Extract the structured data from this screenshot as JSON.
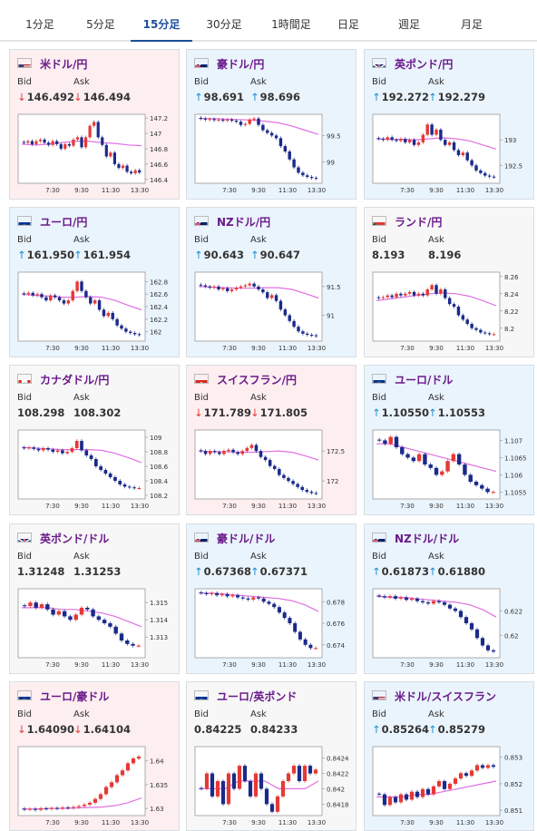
{
  "tabs": [
    "1分足",
    "5分足",
    "15分足",
    "30分足",
    "1時間足",
    "日足",
    "週足",
    "月足"
  ],
  "active_tab": 2,
  "labels": {
    "bid": "Bid",
    "ask": "Ask"
  },
  "colors": {
    "down_bg": "#fdeef0",
    "up_bg": "#eaf4fc",
    "accent": "#1d4f9c",
    "name": "#6a1a8a",
    "up_arrow": "#1a8fd6",
    "down_arrow": "#e53935",
    "bull_candle": "#e53935",
    "bear_candle": "#1a2a8a",
    "ma_line": "#e070e0"
  },
  "x_ticks": [
    "7:30",
    "9:30",
    "11:30",
    "13:30"
  ],
  "pairs": [
    {
      "name": "米ドル/円",
      "flag": "us-jp-flag-icon",
      "trend": "down",
      "bid": "146.492",
      "ask": "146.494",
      "ticks": [
        "147.2",
        "147",
        "146.8",
        "146.6",
        "146.4"
      ],
      "chart_data": {
        "type": "candlestick",
        "ylim": [
          146.35,
          147.25
        ],
        "closes": [
          146.88,
          146.9,
          146.86,
          146.9,
          146.92,
          146.88,
          146.85,
          146.9,
          146.86,
          146.8,
          146.86,
          146.84,
          146.92,
          146.95,
          146.82,
          146.95,
          147.1,
          147.15,
          146.95,
          146.85,
          146.7,
          146.75,
          146.6,
          146.55,
          146.58,
          146.5,
          146.48,
          146.52,
          146.49
        ],
        "ma": [
          146.86,
          146.85,
          146.86,
          146.88,
          146.9,
          146.9,
          146.88,
          146.87,
          146.85,
          146.84
        ]
      }
    },
    {
      "name": "豪ドル/円",
      "flag": "au-jp-flag-icon",
      "trend": "up",
      "bid": "98.691",
      "ask": "98.696",
      "ticks": [
        "99.5",
        "99"
      ],
      "chart_data": {
        "type": "candlestick",
        "ylim": [
          98.6,
          99.9
        ],
        "closes": [
          99.82,
          99.8,
          99.81,
          99.79,
          99.8,
          99.78,
          99.8,
          99.78,
          99.76,
          99.7,
          99.72,
          99.8,
          99.82,
          99.7,
          99.6,
          99.55,
          99.5,
          99.45,
          99.3,
          99.2,
          99.05,
          98.9,
          98.8,
          98.75,
          98.72,
          98.7,
          98.69
        ],
        "ma": [
          99.82,
          99.82,
          99.81,
          99.8,
          99.79,
          99.77,
          99.74,
          99.68,
          99.6,
          99.52
        ]
      }
    },
    {
      "name": "英ポンド/円",
      "flag": "gb-jp-flag-icon",
      "trend": "up",
      "bid": "192.272",
      "ask": "192.279",
      "ticks": [
        "193",
        "192.5"
      ],
      "chart_data": {
        "type": "candlestick",
        "ylim": [
          192.15,
          193.5
        ],
        "closes": [
          193.02,
          193.0,
          193.05,
          193.0,
          192.98,
          193.02,
          192.95,
          193.0,
          192.9,
          192.95,
          193.1,
          193.3,
          193.1,
          193.2,
          193.0,
          192.9,
          192.95,
          192.8,
          192.7,
          192.75,
          192.6,
          192.5,
          192.4,
          192.35,
          192.3,
          192.28,
          192.27
        ],
        "ma": [
          193.02,
          193.01,
          193.01,
          193.0,
          193.02,
          193.04,
          193.02,
          192.98,
          192.9,
          192.82
        ]
      }
    },
    {
      "name": "ユーロ/円",
      "flag": "eu-jp-flag-icon",
      "trend": "up",
      "bid": "161.950",
      "ask": "161.954",
      "ticks": [
        "162.8",
        "162.6",
        "162.4",
        "162.2",
        "162"
      ],
      "chart_data": {
        "type": "candlestick",
        "ylim": [
          161.85,
          162.95
        ],
        "closes": [
          162.6,
          162.62,
          162.58,
          162.6,
          162.55,
          162.5,
          162.58,
          162.55,
          162.5,
          162.45,
          162.5,
          162.65,
          162.8,
          162.65,
          162.55,
          162.45,
          162.5,
          162.35,
          162.25,
          162.3,
          162.2,
          162.1,
          162.05,
          162.0,
          161.98,
          161.96,
          161.95
        ],
        "ma": [
          162.6,
          162.58,
          162.57,
          162.55,
          162.55,
          162.56,
          162.55,
          162.5,
          162.42,
          162.35
        ]
      }
    },
    {
      "name": "NZドル/円",
      "flag": "nz-jp-flag-icon",
      "trend": "up",
      "bid": "90.643",
      "ask": "90.647",
      "ticks": [
        "91.5",
        "91"
      ],
      "chart_data": {
        "type": "candlestick",
        "ylim": [
          90.55,
          91.75
        ],
        "closes": [
          91.52,
          91.5,
          91.48,
          91.5,
          91.45,
          91.47,
          91.42,
          91.45,
          91.48,
          91.5,
          91.52,
          91.55,
          91.5,
          91.45,
          91.4,
          91.3,
          91.35,
          91.25,
          91.1,
          91.0,
          90.9,
          90.8,
          90.72,
          90.68,
          90.66,
          90.65,
          90.64
        ],
        "ma": [
          91.5,
          91.49,
          91.48,
          91.47,
          91.47,
          91.48,
          91.48,
          91.45,
          91.38,
          91.3
        ]
      }
    },
    {
      "name": "ランド/円",
      "flag": "za-jp-flag-icon",
      "trend": "flat",
      "bid": "8.193",
      "ask": "8.196",
      "ticks": [
        "8.26",
        "8.24",
        "8.22",
        "8.2"
      ],
      "chart_data": {
        "type": "candlestick",
        "ylim": [
          8.185,
          8.265
        ],
        "closes": [
          8.235,
          8.236,
          8.238,
          8.236,
          8.24,
          8.238,
          8.24,
          8.242,
          8.238,
          8.24,
          8.238,
          8.245,
          8.25,
          8.24,
          8.245,
          8.235,
          8.228,
          8.225,
          8.215,
          8.21,
          8.205,
          8.2,
          8.198,
          8.195,
          8.194,
          8.193,
          8.193
        ],
        "ma": [
          8.232,
          8.234,
          8.236,
          8.238,
          8.24,
          8.241,
          8.24,
          8.237,
          8.232,
          8.226
        ]
      }
    },
    {
      "name": "カナダドル/円",
      "flag": "ca-jp-flag-icon",
      "trend": "flat",
      "bid": "108.298",
      "ask": "108.302",
      "ticks": [
        "109",
        "108.8",
        "108.6",
        "108.4",
        "108.2"
      ],
      "chart_data": {
        "type": "candlestick",
        "ylim": [
          108.15,
          109.1
        ],
        "closes": [
          108.85,
          108.86,
          108.84,
          108.82,
          108.85,
          108.83,
          108.8,
          108.82,
          108.78,
          108.8,
          108.85,
          108.95,
          108.82,
          108.75,
          108.7,
          108.6,
          108.55,
          108.5,
          108.45,
          108.4,
          108.35,
          108.32,
          108.31,
          108.3,
          108.3
        ],
        "ma": [
          108.86,
          108.85,
          108.84,
          108.83,
          108.83,
          108.83,
          108.82,
          108.78,
          108.72,
          108.65
        ]
      }
    },
    {
      "name": "スイスフラン/円",
      "flag": "ch-jp-flag-icon",
      "trend": "down",
      "bid": "171.789",
      "ask": "171.805",
      "ticks": [
        "172.5",
        "172"
      ],
      "chart_data": {
        "type": "candlestick",
        "ylim": [
          171.7,
          172.85
        ],
        "closes": [
          172.5,
          172.45,
          172.5,
          172.48,
          172.45,
          172.5,
          172.52,
          172.48,
          172.45,
          172.5,
          172.55,
          172.6,
          172.5,
          172.4,
          172.35,
          172.25,
          172.2,
          172.1,
          172.05,
          172.0,
          171.95,
          171.9,
          171.85,
          171.82,
          171.8,
          171.79
        ],
        "ma": [
          172.5,
          172.49,
          172.49,
          172.48,
          172.48,
          172.49,
          172.5,
          172.48,
          172.42,
          172.35
        ]
      }
    },
    {
      "name": "ユーロ/ドル",
      "flag": "eu-us-flag-icon",
      "trend": "up",
      "bid": "1.10550",
      "ask": "1.10553",
      "ticks": [
        "1.107",
        "1.1065",
        "1.106",
        "1.1055"
      ],
      "chart_data": {
        "type": "candlestick",
        "ylim": [
          1.1053,
          1.1073
        ],
        "closes": [
          1.107,
          1.1069,
          1.1071,
          1.1068,
          1.1066,
          1.1065,
          1.1064,
          1.1066,
          1.1063,
          1.1062,
          1.106,
          1.1061,
          1.1064,
          1.1066,
          1.1063,
          1.106,
          1.1058,
          1.1057,
          1.1056,
          1.1055,
          1.1055
        ],
        "ma": [
          1.1069,
          1.1069,
          1.1068,
          1.1067,
          1.1066,
          1.1065,
          1.1064,
          1.1063,
          1.1062,
          1.1061
        ]
      }
    },
    {
      "name": "英ポンド/ドル",
      "flag": "gb-us-flag-icon",
      "trend": "flat",
      "bid": "1.31248",
      "ask": "1.31253",
      "ticks": [
        "1.315",
        "1.314",
        "1.313"
      ],
      "chart_data": {
        "type": "candlestick",
        "ylim": [
          1.3118,
          1.3158
        ],
        "closes": [
          1.3148,
          1.315,
          1.3147,
          1.3149,
          1.3146,
          1.3143,
          1.3145,
          1.3142,
          1.314,
          1.3143,
          1.3147,
          1.3146,
          1.3142,
          1.314,
          1.3138,
          1.3136,
          1.3132,
          1.3128,
          1.3126,
          1.3125,
          1.3125
        ],
        "ma": [
          1.3147,
          1.3147,
          1.3147,
          1.3146,
          1.3146,
          1.3145,
          1.3144,
          1.3142,
          1.3139,
          1.3136
        ]
      }
    },
    {
      "name": "豪ドル/ドル",
      "flag": "au-us-flag-icon",
      "trend": "up",
      "bid": "0.67368",
      "ask": "0.67371",
      "ticks": [
        "0.678",
        "0.676",
        "0.674"
      ],
      "chart_data": {
        "type": "candlestick",
        "ylim": [
          0.6728,
          0.6792
        ],
        "closes": [
          0.6788,
          0.6787,
          0.6788,
          0.6786,
          0.6787,
          0.6785,
          0.6786,
          0.6784,
          0.6783,
          0.6782,
          0.6784,
          0.6783,
          0.678,
          0.6778,
          0.6775,
          0.677,
          0.6765,
          0.676,
          0.6752,
          0.6745,
          0.674,
          0.6737,
          0.6737
        ],
        "ma": [
          0.6788,
          0.6788,
          0.6787,
          0.6786,
          0.6785,
          0.6784,
          0.6783,
          0.6781,
          0.6777,
          0.6771
        ]
      }
    },
    {
      "name": "NZドル/ドル",
      "flag": "nz-us-flag-icon",
      "trend": "up",
      "bid": "0.61873",
      "ask": "0.61880",
      "ticks": [
        "0.622",
        "0.62"
      ],
      "chart_data": {
        "type": "candlestick",
        "ylim": [
          0.6182,
          0.6238
        ],
        "closes": [
          0.6232,
          0.6231,
          0.6232,
          0.623,
          0.6231,
          0.6229,
          0.623,
          0.6228,
          0.6227,
          0.6226,
          0.6228,
          0.6227,
          0.6225,
          0.6222,
          0.622,
          0.6215,
          0.621,
          0.6205,
          0.6198,
          0.6192,
          0.6188,
          0.6187
        ],
        "ma": [
          0.6232,
          0.6231,
          0.6231,
          0.623,
          0.6229,
          0.6228,
          0.6227,
          0.6225,
          0.6221,
          0.6215
        ]
      }
    },
    {
      "name": "ユーロ/豪ドル",
      "flag": "eu-au-flag-icon",
      "trend": "down",
      "bid": "1.64090",
      "ask": "1.64104",
      "ticks": [
        "1.64",
        "1.635",
        "1.63"
      ],
      "chart_data": {
        "type": "candlestick",
        "ylim": [
          1.6285,
          1.643
        ],
        "closes": [
          1.6298,
          1.6299,
          1.6297,
          1.63,
          1.6299,
          1.6301,
          1.63,
          1.6302,
          1.6301,
          1.6303,
          1.6305,
          1.6308,
          1.6312,
          1.632,
          1.633,
          1.6345,
          1.6355,
          1.637,
          1.638,
          1.6395,
          1.6405,
          1.6409
        ],
        "ma": [
          1.6299,
          1.6299,
          1.63,
          1.63,
          1.6301,
          1.6302,
          1.6303,
          1.6306,
          1.6312,
          1.6322
        ]
      }
    },
    {
      "name": "ユーロ/英ポンド",
      "flag": "eu-gb-flag-icon",
      "trend": "flat",
      "bid": "0.84225",
      "ask": "0.84233",
      "ticks": [
        "0.8424",
        "0.8422",
        "0.842",
        "0.8418"
      ],
      "chart_data": {
        "type": "candlestick",
        "ylim": [
          0.84165,
          0.84255
        ],
        "closes": [
          0.842,
          0.8422,
          0.8419,
          0.8421,
          0.8418,
          0.8422,
          0.842,
          0.8423,
          0.8421,
          0.8419,
          0.8422,
          0.842,
          0.8418,
          0.8417,
          0.8419,
          0.8421,
          0.8422,
          0.8423,
          0.8421,
          0.8423,
          0.8422,
          0.84225
        ],
        "ma": [
          0.842,
          0.842,
          0.842,
          0.8421,
          0.8421,
          0.8421,
          0.842,
          0.842,
          0.842,
          0.8421
        ]
      }
    },
    {
      "name": "米ドル/スイスフラン",
      "flag": "us-ch-flag-icon",
      "trend": "up",
      "bid": "0.85264",
      "ask": "0.85279",
      "ticks": [
        "0.853",
        "0.852",
        "0.851"
      ],
      "chart_data": {
        "type": "candlestick",
        "ylim": [
          0.8508,
          0.8534
        ],
        "closes": [
          0.8516,
          0.8512,
          0.8515,
          0.8513,
          0.8516,
          0.8514,
          0.8517,
          0.8515,
          0.8518,
          0.8516,
          0.8519,
          0.8521,
          0.8518,
          0.852,
          0.8522,
          0.8524,
          0.8523,
          0.8525,
          0.8527,
          0.8526,
          0.8527,
          0.85264
        ],
        "ma": [
          0.8515,
          0.8515,
          0.8515,
          0.8516,
          0.8516,
          0.8517,
          0.8518,
          0.8519,
          0.852,
          0.8521
        ]
      }
    }
  ]
}
